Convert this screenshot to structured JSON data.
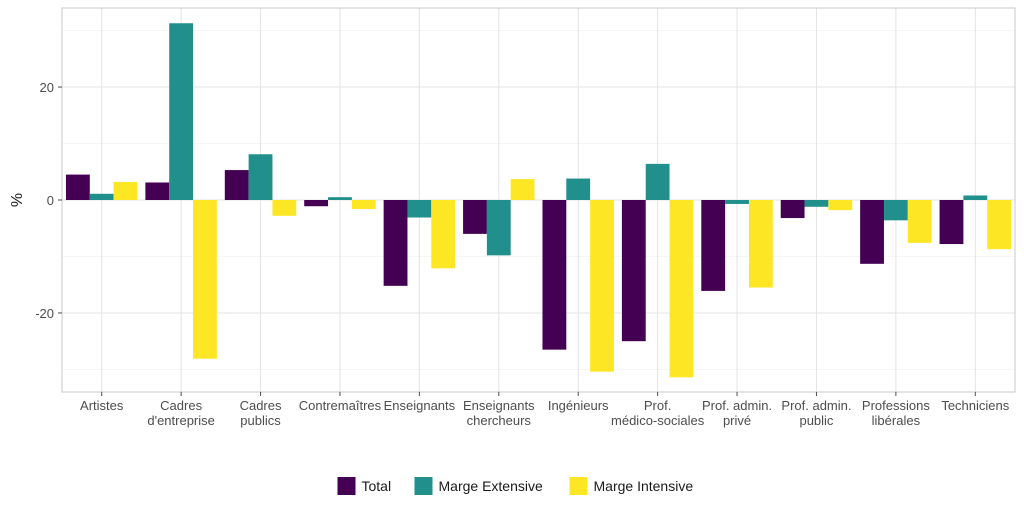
{
  "chart_data": {
    "type": "bar",
    "title": "",
    "xlabel": "",
    "ylabel": "%",
    "ylim": [
      -34,
      34
    ],
    "yticks": [
      -20,
      0,
      20
    ],
    "ytick_labels": [
      "-20",
      "0",
      "20"
    ],
    "grid": true,
    "legend_position": "bottom",
    "categories": [
      [
        "Artistes"
      ],
      [
        "Cadres",
        "d'entreprise"
      ],
      [
        "Cadres",
        "publics"
      ],
      [
        "Contremaîtres"
      ],
      [
        "Enseignants"
      ],
      [
        "Enseignants",
        "chercheurs"
      ],
      [
        "Ingénieurs"
      ],
      [
        "Prof.",
        "médico-sociales"
      ],
      [
        "Prof. admin.",
        "privé"
      ],
      [
        "Prof. admin.",
        "public"
      ],
      [
        "Professions",
        "libérales"
      ],
      [
        "Techniciens"
      ]
    ],
    "series": [
      {
        "name": "Total",
        "color": "#440154",
        "values": [
          4.5,
          3.1,
          5.3,
          -1.1,
          -15.2,
          -6.0,
          -26.5,
          -25.0,
          -16.1,
          -3.2,
          -11.3,
          -7.8
        ]
      },
      {
        "name": "Marge Extensive",
        "color": "#21908C",
        "values": [
          1.1,
          31.3,
          8.1,
          0.5,
          -3.1,
          -9.8,
          3.8,
          6.4,
          -0.7,
          -1.2,
          -3.6,
          0.8
        ]
      },
      {
        "name": "Marge Intensive",
        "color": "#FDE725",
        "values": [
          3.2,
          -28.1,
          -2.8,
          -1.6,
          -12.1,
          3.7,
          -30.4,
          -31.4,
          -15.5,
          -1.8,
          -7.6,
          -8.7
        ]
      }
    ]
  }
}
